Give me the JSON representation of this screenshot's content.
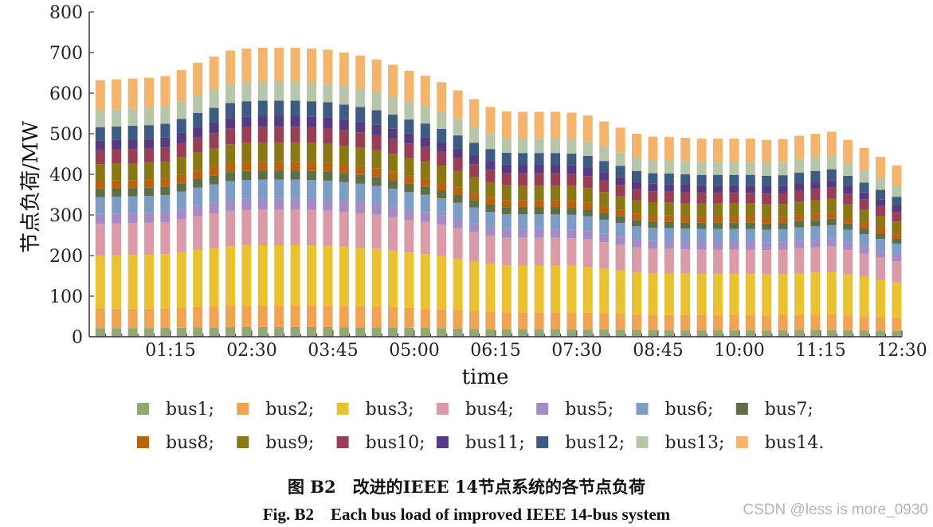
{
  "chart_data": {
    "type": "bar",
    "stacked": true,
    "xlabel": "time",
    "ylabel": "节点负荷/MW",
    "ylim": [
      0,
      800
    ],
    "yticks": [
      0,
      100,
      200,
      300,
      400,
      500,
      600,
      700,
      800
    ],
    "xticks": [
      "01:15",
      "02:30",
      "03:45",
      "05:00",
      "06:15",
      "07:30",
      "08:45",
      "10:00",
      "11:15",
      "12:30"
    ],
    "legend_placement": "bottom",
    "num_slots": 50,
    "totals": [
      632,
      634,
      636,
      638,
      642,
      657,
      675,
      690,
      705,
      710,
      712,
      712,
      712,
      710,
      707,
      700,
      693,
      683,
      670,
      655,
      643,
      627,
      607,
      585,
      566,
      555,
      554,
      554,
      554,
      552,
      545,
      530,
      515,
      500,
      493,
      492,
      490,
      488,
      488,
      488,
      488,
      485,
      487,
      495,
      500,
      505,
      485,
      465,
      443,
      422
    ],
    "series": [
      {
        "name": "bus1;",
        "color": "#8FA874",
        "share": 0.0334
      },
      {
        "name": "bus2;",
        "color": "#F0A352",
        "share": 0.0752
      },
      {
        "name": "bus3;",
        "color": "#E8C230",
        "share": 0.2081
      },
      {
        "name": "bus4;",
        "color": "#D99BA8",
        "share": 0.1232
      },
      {
        "name": "bus5;",
        "color": "#A58BC6",
        "share": 0.0383
      },
      {
        "name": "bus6;",
        "color": "#7C9DC6",
        "share": 0.0657
      },
      {
        "name": "bus7;",
        "color": "#5E6F46",
        "share": 0.0313
      },
      {
        "name": "bus8;",
        "color": "#B8630F",
        "share": 0.0313
      },
      {
        "name": "bus9;",
        "color": "#8A7716",
        "share": 0.0657
      },
      {
        "name": "bus10;",
        "color": "#983F57",
        "share": 0.0544
      },
      {
        "name": "bus11;",
        "color": "#543B82",
        "share": 0.0377
      },
      {
        "name": "bus12;",
        "color": "#3E5C81",
        "share": 0.0526
      },
      {
        "name": "bus13;",
        "color": "#B7C5A9",
        "share": 0.0657
      },
      {
        "name": "bus14.",
        "color": "#F3B56E",
        "share": 0.1174
      }
    ]
  },
  "caption": {
    "cn": "图 B2　改进的IEEE 14节点系统的各节点负荷",
    "en": "Fig. B2　Each bus load of improved IEEE 14-bus system"
  },
  "watermark": "CSDN @less is more_0930"
}
